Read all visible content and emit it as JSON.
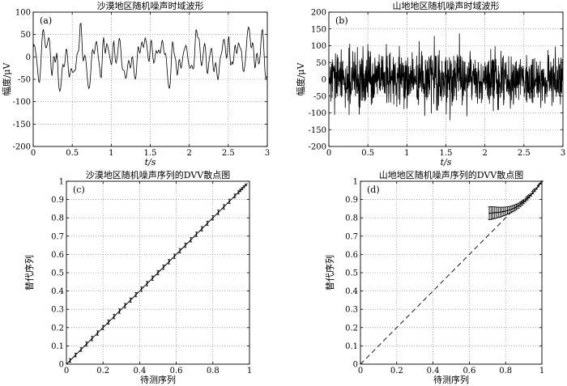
{
  "chart_data": [
    {
      "id": "a",
      "type": "line",
      "panel_label": "(a)",
      "title": "沙漠地区随机噪声时域波形",
      "xlabel": "t/s",
      "ylabel": "幅度/μV",
      "xlim": [
        0,
        3
      ],
      "ylim": [
        -200,
        100
      ],
      "xticks": [
        0,
        0.5,
        1,
        1.5,
        2,
        2.5,
        3
      ],
      "yticks": [
        -200,
        -150,
        -100,
        -50,
        0,
        50,
        100
      ],
      "grid": true,
      "series": [
        {
          "kind": "random-noise",
          "x_start": 0,
          "x_end": 3,
          "n_points": 300,
          "amplitude_rms": 30,
          "peak_max": 75,
          "peak_min": -95,
          "seed": 11,
          "smooth": 3
        }
      ]
    },
    {
      "id": "b",
      "type": "line",
      "panel_label": "(b)",
      "title": "山地地区随机噪声时域波形",
      "xlabel": "t/s",
      "ylabel": "幅度/μV",
      "xlim": [
        0,
        3
      ],
      "ylim": [
        -200,
        200
      ],
      "xticks": [
        0,
        0.5,
        1,
        1.5,
        2,
        2.5,
        3
      ],
      "yticks": [
        -200,
        -150,
        -100,
        -50,
        0,
        50,
        100,
        150,
        200
      ],
      "grid": true,
      "series": [
        {
          "kind": "random-noise",
          "x_start": 0,
          "x_end": 3,
          "n_points": 1100,
          "amplitude_rms": 40,
          "peak_max": 165,
          "peak_min": -170,
          "seed": 29,
          "smooth": 0
        }
      ]
    },
    {
      "id": "c",
      "type": "scatter",
      "panel_label": "(c)",
      "title": "沙漠地区随机噪声序列的DVV散点图",
      "xlabel": "待测序列",
      "ylabel": "替代序列",
      "xlim": [
        0,
        1
      ],
      "ylim": [
        0,
        1
      ],
      "xticks": [
        0,
        0.2,
        0.4,
        0.6,
        0.8,
        1
      ],
      "yticks": [
        0,
        0.1,
        0.2,
        0.3,
        0.4,
        0.5,
        0.6,
        0.7,
        0.8,
        0.9,
        1
      ],
      "grid": true,
      "reference_line": {
        "from": [
          0,
          0
        ],
        "to": [
          1,
          1
        ],
        "style": "dashed"
      },
      "series": [
        {
          "name": "",
          "x": [
            0.02,
            0.05,
            0.08,
            0.11,
            0.14,
            0.17,
            0.2,
            0.23,
            0.26,
            0.29,
            0.32,
            0.35,
            0.38,
            0.41,
            0.44,
            0.47,
            0.5,
            0.53,
            0.56,
            0.59,
            0.62,
            0.65,
            0.68,
            0.71,
            0.74,
            0.77,
            0.8,
            0.83,
            0.86,
            0.89,
            0.92,
            0.94,
            0.95,
            0.96,
            0.97,
            0.98
          ],
          "y": [
            0.02,
            0.05,
            0.08,
            0.11,
            0.14,
            0.17,
            0.2,
            0.23,
            0.26,
            0.29,
            0.32,
            0.35,
            0.38,
            0.41,
            0.44,
            0.47,
            0.5,
            0.53,
            0.56,
            0.59,
            0.62,
            0.65,
            0.68,
            0.71,
            0.74,
            0.77,
            0.8,
            0.83,
            0.86,
            0.89,
            0.92,
            0.94,
            0.95,
            0.96,
            0.97,
            0.98
          ],
          "err": [
            0.01,
            0.01,
            0.01,
            0.012,
            0.012,
            0.012,
            0.012,
            0.012,
            0.012,
            0.012,
            0.012,
            0.012,
            0.012,
            0.012,
            0.012,
            0.012,
            0.012,
            0.012,
            0.012,
            0.012,
            0.012,
            0.012,
            0.012,
            0.012,
            0.012,
            0.012,
            0.012,
            0.012,
            0.012,
            0.012,
            0.01,
            0.008,
            0.007,
            0.006,
            0.005,
            0.004
          ]
        }
      ]
    },
    {
      "id": "d",
      "type": "scatter",
      "panel_label": "(d)",
      "title": "山地地区随机噪声序列的DVV散点图",
      "xlabel": "待测序列",
      "ylabel": "替代序列",
      "xlim": [
        0,
        1
      ],
      "ylim": [
        0,
        1
      ],
      "xticks": [
        0,
        0.2,
        0.4,
        0.6,
        0.8,
        1
      ],
      "yticks": [
        0,
        0.1,
        0.2,
        0.3,
        0.4,
        0.5,
        0.6,
        0.7,
        0.8,
        0.9,
        1
      ],
      "grid": true,
      "reference_line": {
        "from": [
          0,
          0
        ],
        "to": [
          1,
          1
        ],
        "style": "dashed"
      },
      "series": [
        {
          "name": "",
          "x": [
            0.71,
            0.72,
            0.73,
            0.74,
            0.75,
            0.76,
            0.77,
            0.78,
            0.79,
            0.8,
            0.81,
            0.82,
            0.83,
            0.84,
            0.85,
            0.86,
            0.87,
            0.88,
            0.89,
            0.9,
            0.91,
            0.92,
            0.93,
            0.94,
            0.95,
            0.96,
            0.97,
            0.98,
            0.99,
            1.0
          ],
          "y": [
            0.825,
            0.826,
            0.827,
            0.828,
            0.829,
            0.83,
            0.831,
            0.833,
            0.835,
            0.837,
            0.84,
            0.843,
            0.846,
            0.85,
            0.855,
            0.86,
            0.866,
            0.873,
            0.88,
            0.888,
            0.897,
            0.906,
            0.916,
            0.926,
            0.937,
            0.948,
            0.96,
            0.972,
            0.986,
            1.0
          ],
          "err": [
            0.035,
            0.035,
            0.033,
            0.032,
            0.03,
            0.028,
            0.027,
            0.025,
            0.023,
            0.022,
            0.02,
            0.019,
            0.018,
            0.017,
            0.016,
            0.015,
            0.014,
            0.013,
            0.012,
            0.011,
            0.01,
            0.009,
            0.008,
            0.007,
            0.006,
            0.005,
            0.004,
            0.003,
            0.002,
            0.001
          ]
        }
      ]
    }
  ]
}
